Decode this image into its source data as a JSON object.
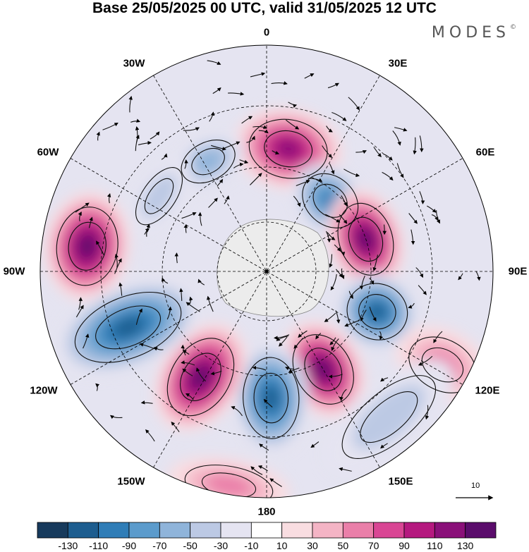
{
  "title": "Base 25/05/2025 00 UTC, valid 31/05/2025 12 UTC",
  "brand": "MODES",
  "brand_mark": "©",
  "longitude_labels": {
    "lon_0": "0",
    "lon_30e": "30E",
    "lon_60e": "60E",
    "lon_90e": "90E",
    "lon_120e": "120E",
    "lon_150e": "150E",
    "lon_180": "180",
    "lon_150w": "150W",
    "lon_120w": "120W",
    "lon_90w": "90W",
    "lon_60w": "60W",
    "lon_30w": "30W"
  },
  "vector_reference": {
    "label": "10"
  },
  "colorbar": {
    "colors": [
      "#173a5c",
      "#1d5d8f",
      "#2f7db7",
      "#5b9bcc",
      "#8fb4da",
      "#bcc9e4",
      "#e5e4f1",
      "#ffffff",
      "#f9dde1",
      "#f4b4c5",
      "#ea7fa9",
      "#d94694",
      "#b5197f",
      "#8a1079",
      "#5a0c6b"
    ],
    "tick_labels": [
      "-130",
      "-110",
      "-90",
      "-70",
      "-50",
      "-30",
      "-10",
      "10",
      "30",
      "50",
      "70",
      "90",
      "110",
      "130"
    ]
  },
  "chart_data": {
    "type": "heatmap",
    "projection": "south polar stereographic",
    "field": "anomaly (shaded) with wind vectors",
    "levels": [
      -130,
      -110,
      -90,
      -70,
      -50,
      -30,
      -10,
      10,
      30,
      50,
      70,
      90,
      110,
      130
    ],
    "centers": [
      {
        "lon": 10,
        "value": 110
      },
      {
        "lon": -28,
        "value": -60
      },
      {
        "lon": 42,
        "value": -95
      },
      {
        "lon": 72,
        "value": 125
      },
      {
        "lon": -82,
        "value": 125
      },
      {
        "lon": -55,
        "value": -40
      },
      {
        "lon": 110,
        "value": -110
      },
      {
        "lon": 118,
        "value": 60
      },
      {
        "lon": 150,
        "value": 125
      },
      {
        "lon": 178,
        "value": -120
      },
      {
        "lon": -148,
        "value": 125
      },
      {
        "lon": -112,
        "value": -120
      },
      {
        "lon": 140,
        "value": -40
      },
      {
        "lon": -170,
        "value": 50
      }
    ],
    "grid": true
  }
}
